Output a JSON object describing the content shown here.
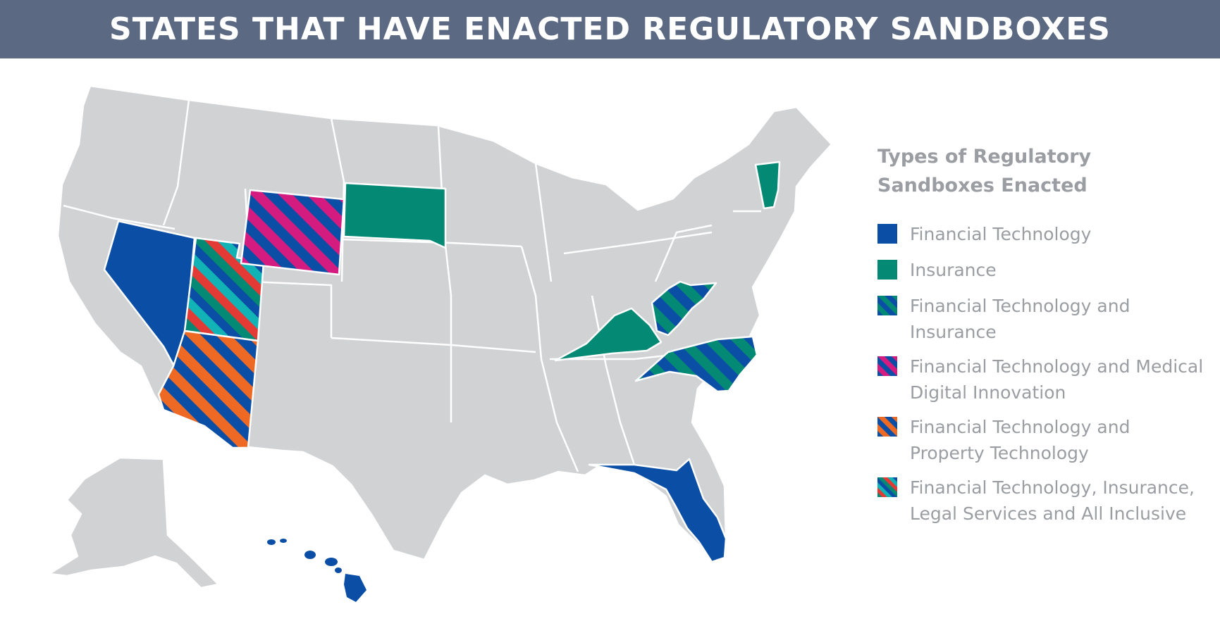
{
  "banner": {
    "title": "STATES THAT HAVE ENACTED REGULATORY SANDBOXES"
  },
  "legend": {
    "title": "Types of Regulatory Sandboxes Enacted",
    "items": [
      {
        "label": "Financial Technology",
        "colors": [
          "#0a4ea6"
        ]
      },
      {
        "label": "Insurance",
        "colors": [
          "#048a74"
        ]
      },
      {
        "label": "Financial Technology and Insurance",
        "colors": [
          "#0a4ea6",
          "#048a74"
        ]
      },
      {
        "label": "Financial Technology and Medical Digital Innovation",
        "colors": [
          "#0a4ea6",
          "#d41b7f"
        ]
      },
      {
        "label": "Financial Technology and Property Technology",
        "colors": [
          "#0a4ea6",
          "#ee6a24"
        ]
      },
      {
        "label": "Financial Technology, Insurance, Legal Services and All Inclusive",
        "colors": [
          "#048a74",
          "#e43a35",
          "#11b3b5",
          "#0a4ea6"
        ]
      }
    ]
  },
  "map": {
    "base_color": "#d1d2d4",
    "border_color": "#ffffff",
    "states": {
      "nevada": "Financial Technology",
      "florida": "Financial Technology",
      "hawaii": "Financial Technology",
      "south_dakota": "Insurance",
      "kentucky": "Insurance",
      "vermont": "Insurance",
      "west_virginia": "Financial Technology and Insurance",
      "north_carolina": "Financial Technology and Insurance",
      "wyoming": "Financial Technology and Medical Digital Innovation",
      "arizona": "Financial Technology and Property Technology",
      "utah": "Financial Technology, Insurance, Legal Services and All Inclusive"
    }
  }
}
